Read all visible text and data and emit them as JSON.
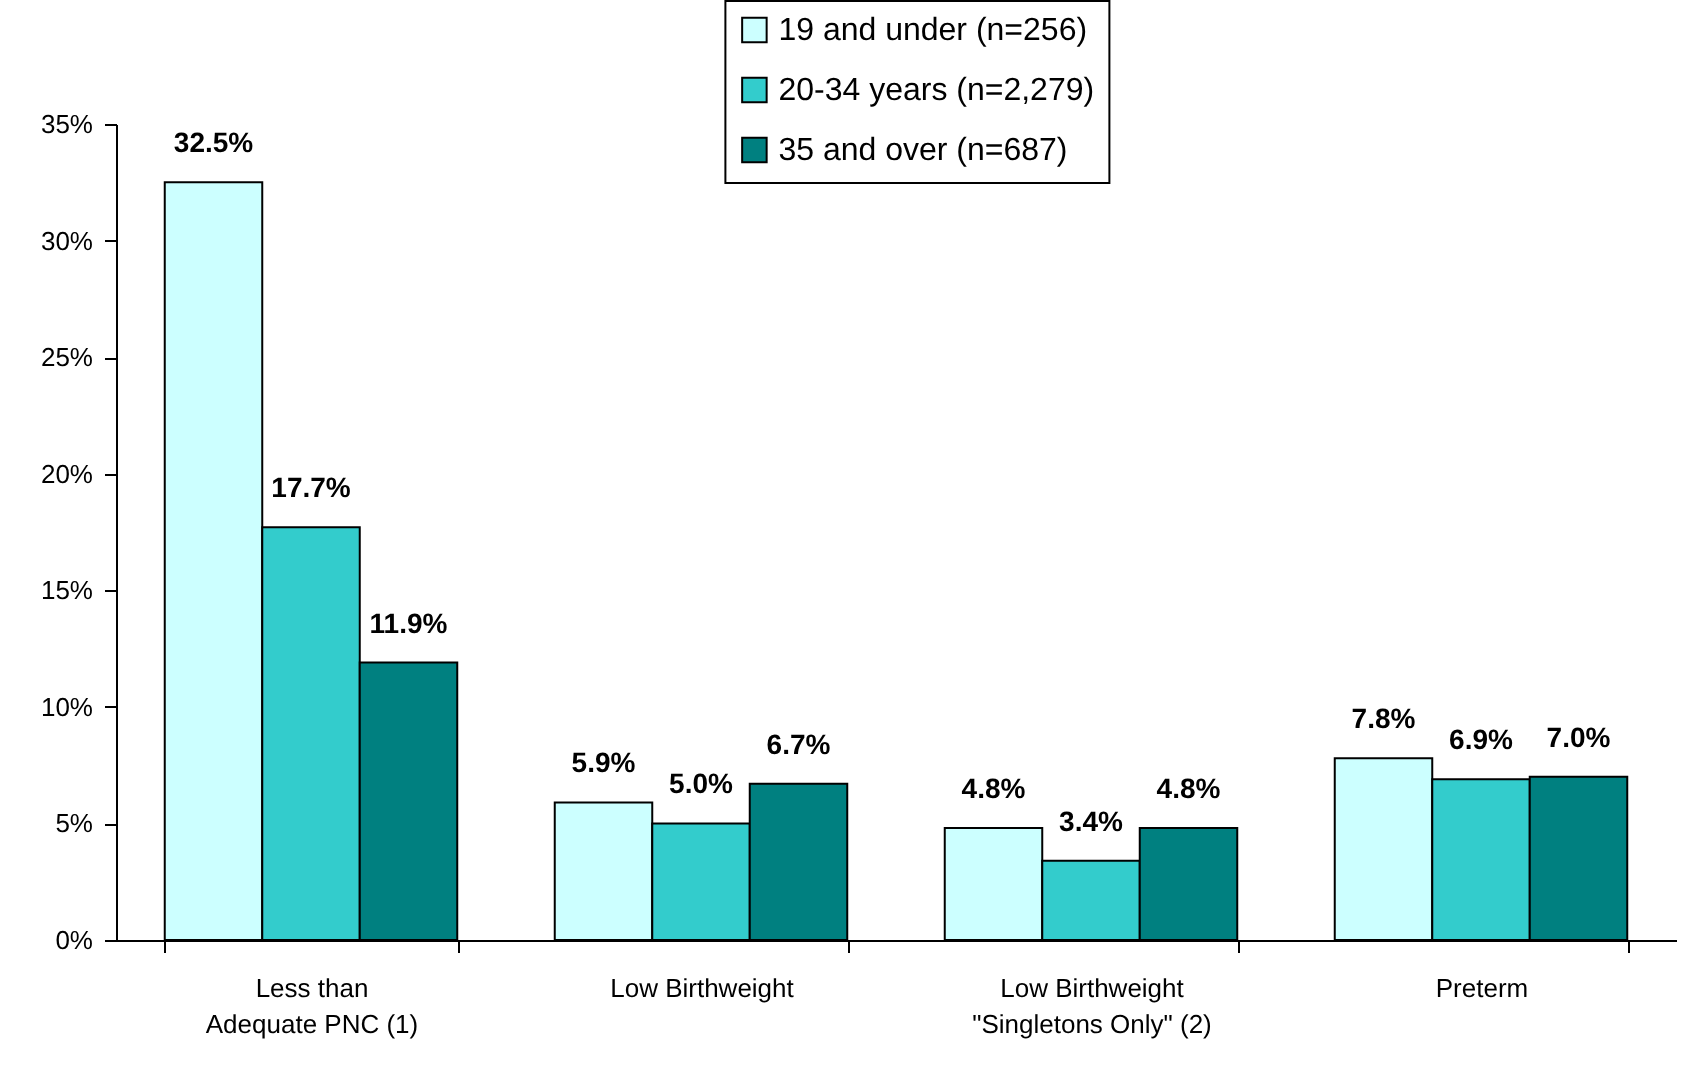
{
  "chart_data": {
    "type": "bar",
    "categories": [
      "Less than\nAdequate PNC (1)",
      "Low Birthweight",
      "Low Birthweight\n\"Singletons Only\" (2)",
      "Preterm"
    ],
    "series": [
      {
        "name": "19 and under (n=256)",
        "color": "#ccffff",
        "values": [
          32.5,
          5.9,
          4.8,
          7.8
        ],
        "value_labels": [
          "32.5%",
          "5.9%",
          "4.8%",
          "7.8%"
        ]
      },
      {
        "name": "20-34 years (n=2,279)",
        "color": "#33cccc",
        "values": [
          17.7,
          5.0,
          3.4,
          6.9
        ],
        "value_labels": [
          "17.7%",
          "5.0%",
          "3.4%",
          "6.9%"
        ]
      },
      {
        "name": "35 and over  (n=687)",
        "color": "#008080",
        "values": [
          11.9,
          6.7,
          4.8,
          7.0
        ],
        "value_labels": [
          "11.9%",
          "6.7%",
          "4.8%",
          "7.0%"
        ]
      }
    ],
    "ylim": [
      0,
      35
    ],
    "yticks": [
      {
        "value": 0,
        "label": "0%"
      },
      {
        "value": 5,
        "label": "5%"
      },
      {
        "value": 10,
        "label": "10%"
      },
      {
        "value": 15,
        "label": "15%"
      },
      {
        "value": 20,
        "label": "20%"
      },
      {
        "value": 25,
        "label": "25%"
      },
      {
        "value": 30,
        "label": "30%"
      },
      {
        "value": 35,
        "label": "35%"
      }
    ],
    "legend": "top",
    "grid": false
  }
}
